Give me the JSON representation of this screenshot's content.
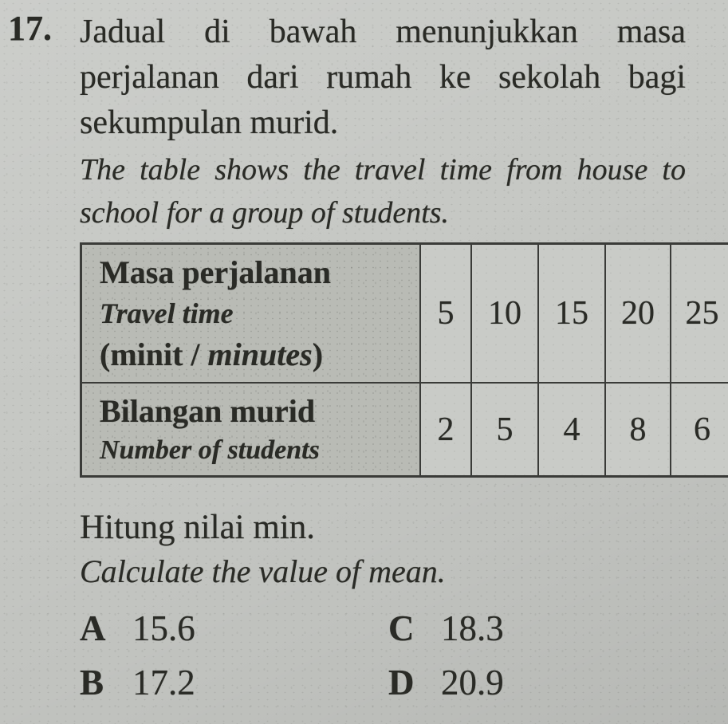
{
  "page": {
    "background_color": "#c6c8c4",
    "text_color": "#2a2b26",
    "table_border_color": "#3a3b38"
  },
  "question": {
    "number": "17.",
    "malay_lines": [
      "Jadual di bawah menunjukkan masa",
      "perjalanan dari rumah ke sekolah bagi",
      "sekumpulan murid."
    ],
    "english_lines": [
      "The table shows the travel time from house to",
      "school for a group of students."
    ]
  },
  "table": {
    "row1": {
      "title_malay": "Masa perjalanan",
      "title_english": "Travel time",
      "unit_prefix": "(minit / ",
      "unit_italic": "minutes",
      "unit_suffix": ")",
      "values": [
        "5",
        "10",
        "15",
        "20",
        "25"
      ]
    },
    "row2": {
      "title_malay": "Bilangan murid",
      "title_english": "Number of students",
      "values": [
        "2",
        "5",
        "4",
        "8",
        "6"
      ]
    }
  },
  "prompt": {
    "malay": "Hitung nilai min.",
    "english": "Calculate the value of mean."
  },
  "options": [
    {
      "letter": "A",
      "value": "15.6"
    },
    {
      "letter": "B",
      "value": "17.2"
    },
    {
      "letter": "C",
      "value": "18.3"
    },
    {
      "letter": "D",
      "value": "20.9"
    }
  ]
}
